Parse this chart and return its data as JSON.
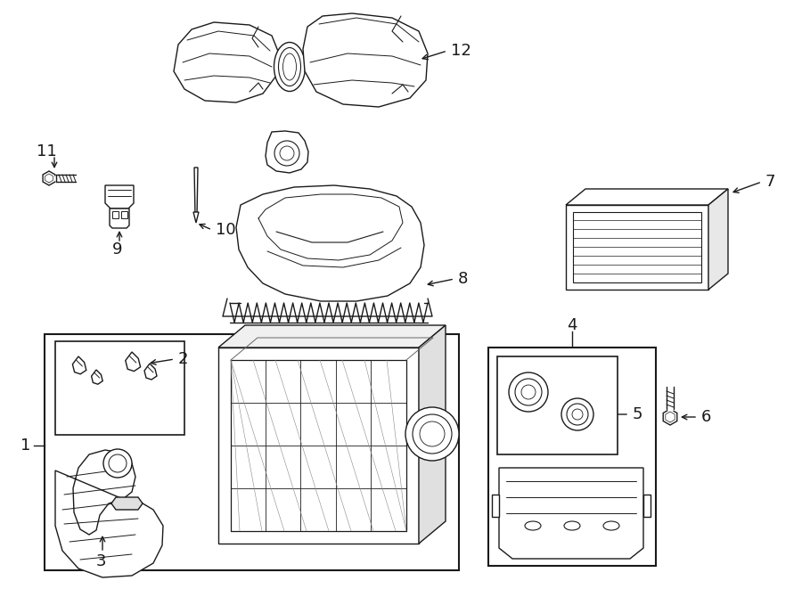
{
  "bg_color": "#ffffff",
  "line_color": "#1a1a1a",
  "lw": 1.0,
  "fig_width": 9.0,
  "fig_height": 6.61,
  "dpi": 100,
  "font_size": 11,
  "font_size_large": 13
}
